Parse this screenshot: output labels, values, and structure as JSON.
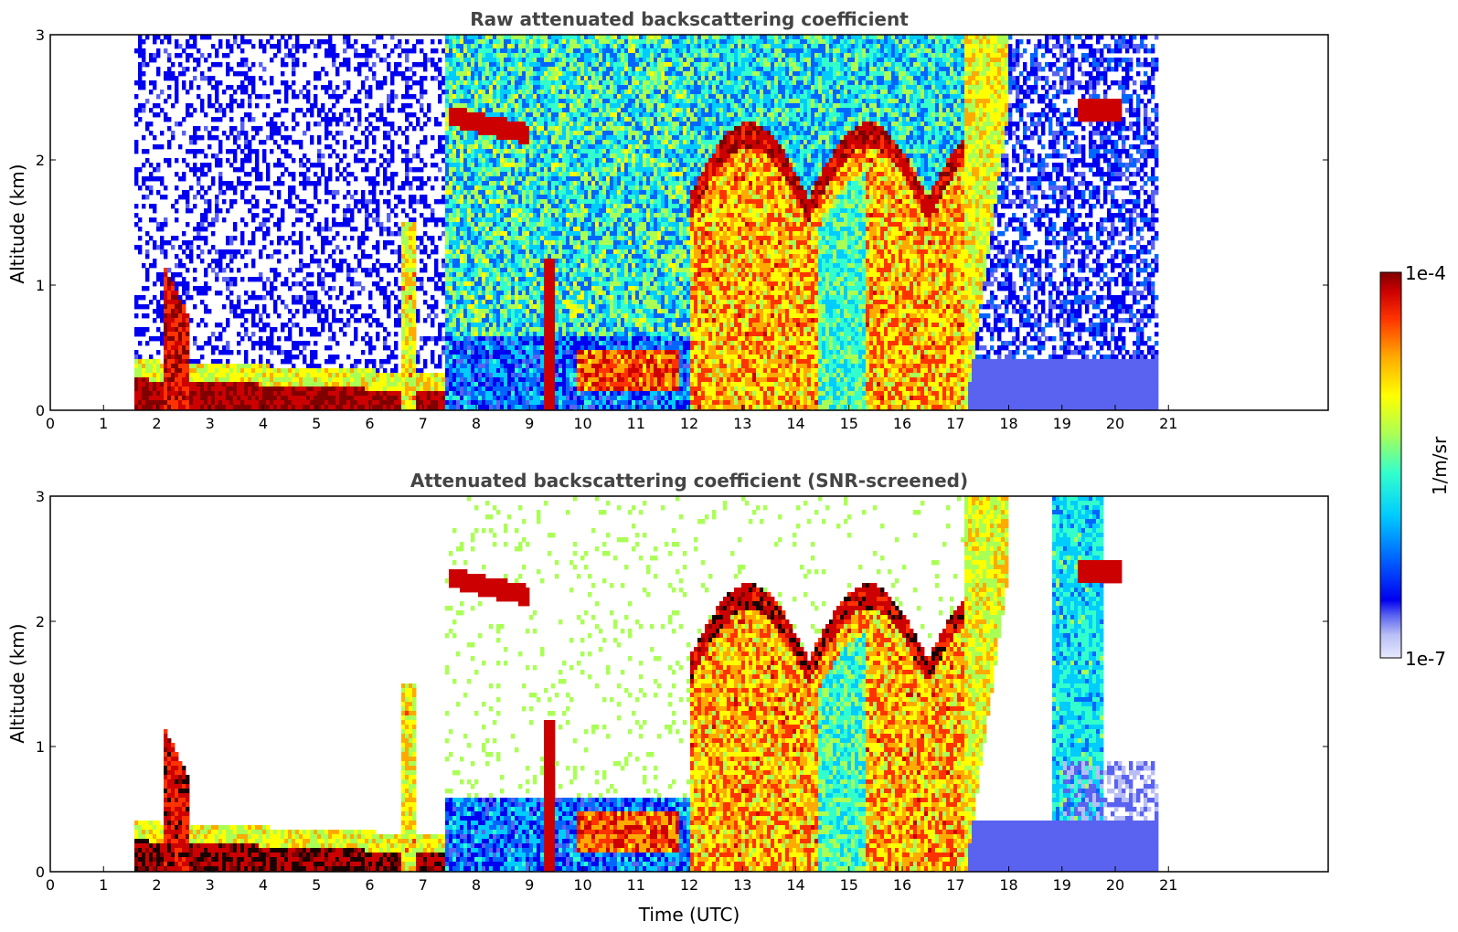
{
  "chart_data": [
    {
      "type": "heatmap",
      "title": "Raw attenuated backscattering coefficient",
      "xlabel": "",
      "ylabel": "Altitude (km)",
      "xlim": [
        0,
        24
      ],
      "ylim": [
        0,
        3
      ],
      "x_ticks": [
        "0",
        "1",
        "2",
        "3",
        "4",
        "5",
        "6",
        "7",
        "8",
        "9",
        "10",
        "11",
        "12",
        "13",
        "14",
        "15",
        "16",
        "17",
        "18",
        "19",
        "20",
        "21"
      ],
      "y_ticks": [
        "0",
        "1",
        "2",
        "3"
      ],
      "data_extent_hours": [
        1.55,
        20.8
      ],
      "features": [
        {
          "name": "surface aerosol layer",
          "x": [
            1.55,
            7.4
          ],
          "y_top": 0.25,
          "level": "max"
        },
        {
          "name": "aerosol plume",
          "x": [
            2.1,
            2.6
          ],
          "y_top": 1.2,
          "level": "high"
        },
        {
          "name": "elevated layer",
          "x": [
            7.5,
            9.0
          ],
          "y": [
            2.2,
            2.4
          ],
          "level": "max"
        },
        {
          "name": "boundary layer clouds",
          "x": [
            12.0,
            17.2
          ],
          "y_top": 2.1,
          "level": "high"
        },
        {
          "name": "elevated layer",
          "x": [
            19.3,
            20.1
          ],
          "y": [
            2.3,
            2.5
          ],
          "level": "max"
        }
      ]
    },
    {
      "type": "heatmap",
      "title": "Attenuated backscattering coefficient (SNR-screened)",
      "xlabel": "Time (UTC)",
      "ylabel": "Altitude (km)",
      "xlim": [
        0,
        24
      ],
      "ylim": [
        0,
        3
      ],
      "x_ticks": [
        "0",
        "1",
        "2",
        "3",
        "4",
        "5",
        "6",
        "7",
        "8",
        "9",
        "10",
        "11",
        "12",
        "13",
        "14",
        "15",
        "16",
        "17",
        "18",
        "19",
        "20",
        "21"
      ],
      "y_ticks": [
        "0",
        "1",
        "2",
        "3"
      ],
      "data_extent_hours": [
        1.55,
        20.8
      ],
      "screened": true
    }
  ],
  "colorbar": {
    "label": "1/m/sr",
    "max_label": "1e-4",
    "min_label": "1e-7",
    "scale": "log",
    "colormap": [
      "#e8eaff",
      "#b8bef5",
      "#5a63f0",
      "#0000f0",
      "#0066ff",
      "#00ccff",
      "#33ffcc",
      "#aaff55",
      "#ffff00",
      "#ffaa00",
      "#ff3300",
      "#cc0000",
      "#800000"
    ]
  }
}
